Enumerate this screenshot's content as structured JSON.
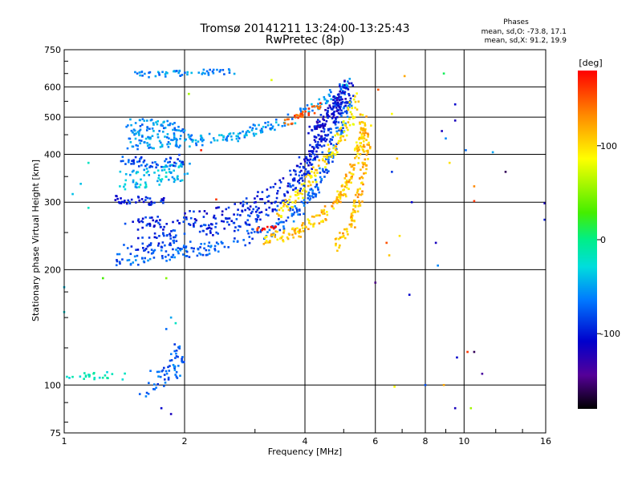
{
  "chart_data": {
    "type": "scatter",
    "title": "Tromsø 20141211 13:24:00-13:25:43",
    "subtitle": "RwPretec (8p)",
    "xlabel": "Frequency [MHz]",
    "ylabel": "Stationary phase Virtual Height [km]",
    "x_scale": "log",
    "y_scale": "log",
    "xlim": [
      1,
      16
    ],
    "ylim": [
      75,
      750
    ],
    "x_ticks": [
      1,
      2,
      4,
      6,
      8,
      10,
      16
    ],
    "y_ticks": [
      75,
      100,
      200,
      300,
      400,
      500,
      600,
      750
    ],
    "x_gridlines": [
      2,
      4,
      6,
      8,
      10
    ],
    "y_gridlines": [
      100,
      200,
      300,
      400,
      500,
      600
    ],
    "grid": true,
    "stats": {
      "heading": "Phases",
      "line1": "mean, sd,O: -73.8, 17.1",
      "line2": "mean, sd,X:  91.2, 19.9"
    },
    "colorbar": {
      "label": "[deg]",
      "range": [
        -180,
        180
      ],
      "ticks": [
        100,
        0,
        -100
      ],
      "tick_labels": [
        "100",
        "0",
        "-100"
      ],
      "colormap": "rainbow (black-purple-blue-cyan-green-yellow-red)"
    },
    "traces": [
      {
        "segments": [
          [
            [
              1.35,
              212
            ],
            [
              1.8,
              218
            ],
            [
              2.4,
              228
            ],
            [
              3.0,
              245
            ],
            [
              3.5,
              262
            ],
            [
              4.0,
              295
            ],
            [
              4.4,
              345
            ],
            [
              4.8,
              430
            ],
            [
              5.2,
              560
            ]
          ]
        ],
        "phase": -75,
        "thickness": 0.035,
        "n": 260
      },
      {
        "segments": [
          [
            [
              1.4,
              230
            ],
            [
              2.0,
              245
            ],
            [
              2.6,
              262
            ],
            [
              3.2,
              285
            ],
            [
              3.7,
              320
            ],
            [
              4.2,
              380
            ],
            [
              4.6,
              460
            ],
            [
              5.0,
              590
            ]
          ]
        ],
        "phase": -90,
        "thickness": 0.04,
        "n": 240
      },
      {
        "segments": [
          [
            [
              1.45,
              258
            ],
            [
              1.9,
              268
            ],
            [
              2.5,
              280
            ],
            [
              3.0,
              300
            ],
            [
              3.6,
              335
            ],
            [
              4.1,
              390
            ],
            [
              4.6,
              480
            ]
          ]
        ],
        "phase": -100,
        "thickness": 0.04,
        "n": 170
      },
      {
        "segments": [
          [
            [
              1.45,
              425
            ],
            [
              2.0,
              432
            ],
            [
              2.6,
              445
            ],
            [
              3.2,
              470
            ],
            [
              3.8,
              500
            ],
            [
              4.3,
              540
            ],
            [
              4.9,
              590
            ],
            [
              5.3,
              610
            ]
          ]
        ],
        "phase": -55,
        "thickness": 0.03,
        "n": 200
      },
      {
        "segments": [
          [
            [
              1.45,
              470
            ],
            [
              1.8,
              465
            ],
            [
              2.0,
              460
            ]
          ]
        ],
        "phase": -60,
        "thickness": 0.05,
        "n": 80
      },
      {
        "segments": [
          [
            [
              1.35,
              305
            ],
            [
              1.55,
              303
            ],
            [
              1.8,
              300
            ]
          ]
        ],
        "phase": -100,
        "thickness": 0.02,
        "n": 40
      },
      {
        "segments": [
          [
            [
              1.4,
              340
            ],
            [
              1.7,
              350
            ],
            [
              2.0,
              365
            ]
          ]
        ],
        "phase": -40,
        "thickness": 0.05,
        "n": 80
      },
      {
        "segments": [
          [
            [
              1.4,
              385
            ],
            [
              1.7,
              380
            ],
            [
              2.0,
              388
            ]
          ]
        ],
        "phase": -80,
        "thickness": 0.03,
        "n": 50
      },
      {
        "segments": [
          [
            [
              1.5,
              645
            ],
            [
              1.9,
              650
            ],
            [
              2.3,
              655
            ],
            [
              2.7,
              660
            ]
          ]
        ],
        "phase": -60,
        "thickness": 0.015,
        "n": 55
      },
      {
        "segments": [
          [
            [
              4.2,
              440
            ],
            [
              4.5,
              500
            ],
            [
              4.9,
              560
            ],
            [
              5.2,
              600
            ]
          ]
        ],
        "phase": -110,
        "thickness": 0.05,
        "n": 120
      },
      {
        "segments": [
          [
            [
              3.2,
              240
            ],
            [
              3.8,
              250
            ],
            [
              4.3,
              270
            ],
            [
              4.8,
              300
            ],
            [
              5.2,
              350
            ],
            [
              5.5,
              420
            ],
            [
              5.6,
              500
            ]
          ]
        ],
        "phase": 110,
        "thickness": 0.03,
        "n": 200
      },
      {
        "segments": [
          [
            [
              3.4,
              280
            ],
            [
              4.0,
              330
            ],
            [
              4.6,
              400
            ],
            [
              5.1,
              470
            ],
            [
              5.4,
              560
            ]
          ]
        ],
        "phase": 100,
        "thickness": 0.035,
        "n": 130
      },
      {
        "segments": [
          [
            [
              4.8,
              230
            ],
            [
              5.2,
              260
            ],
            [
              5.5,
              320
            ],
            [
              5.7,
              400
            ],
            [
              5.75,
              480
            ]
          ]
        ],
        "phase": 115,
        "thickness": 0.03,
        "n": 110
      },
      {
        "segments": [
          [
            [
              3.0,
              255
            ],
            [
              3.2,
              256
            ],
            [
              3.4,
              258
            ]
          ]
        ],
        "phase": 170,
        "thickness": 0.008,
        "n": 15
      },
      {
        "segments": [
          [
            [
              3.5,
              480
            ],
            [
              3.9,
              500
            ],
            [
              4.4,
              540
            ]
          ]
        ],
        "phase": 150,
        "thickness": 0.02,
        "n": 35
      },
      {
        "segments": [
          [
            [
              1.6,
              100
            ],
            [
              1.75,
              103
            ],
            [
              1.9,
              110
            ],
            [
              1.95,
              125
            ]
          ]
        ],
        "phase": -75,
        "thickness": 0.06,
        "n": 60
      },
      {
        "segments": [
          [
            [
              1.0,
              104
            ],
            [
              1.2,
              106
            ],
            [
              1.4,
              105
            ]
          ]
        ],
        "phase": -20,
        "thickness": 0.02,
        "n": 25
      }
    ],
    "points": [
      {
        "x": 6.1,
        "y": 590,
        "phase": 150
      },
      {
        "x": 6.6,
        "y": 510,
        "phase": 90
      },
      {
        "x": 7.1,
        "y": 640,
        "phase": 120
      },
      {
        "x": 8.9,
        "y": 650,
        "phase": 10
      },
      {
        "x": 9.5,
        "y": 540,
        "phase": -110
      },
      {
        "x": 9.5,
        "y": 490,
        "phase": -120
      },
      {
        "x": 8.8,
        "y": 460,
        "phase": -120
      },
      {
        "x": 9.0,
        "y": 440,
        "phase": -60
      },
      {
        "x": 6.8,
        "y": 390,
        "phase": 110
      },
      {
        "x": 6.6,
        "y": 360,
        "phase": -90
      },
      {
        "x": 9.2,
        "y": 380,
        "phase": 100
      },
      {
        "x": 10.1,
        "y": 410,
        "phase": -70
      },
      {
        "x": 11.8,
        "y": 405,
        "phase": -50
      },
      {
        "x": 12.7,
        "y": 360,
        "phase": -160
      },
      {
        "x": 10.6,
        "y": 330,
        "phase": 130
      },
      {
        "x": 10.6,
        "y": 302,
        "phase": 160
      },
      {
        "x": 15.9,
        "y": 298,
        "phase": -120
      },
      {
        "x": 15.9,
        "y": 270,
        "phase": -100
      },
      {
        "x": 6.5,
        "y": 218,
        "phase": 110
      },
      {
        "x": 6.4,
        "y": 235,
        "phase": 150
      },
      {
        "x": 6.9,
        "y": 245,
        "phase": 100
      },
      {
        "x": 7.4,
        "y": 300,
        "phase": -110
      },
      {
        "x": 8.5,
        "y": 235,
        "phase": -120
      },
      {
        "x": 8.6,
        "y": 205,
        "phase": -60
      },
      {
        "x": 6.0,
        "y": 185,
        "phase": -150
      },
      {
        "x": 7.3,
        "y": 172,
        "phase": -110
      },
      {
        "x": 9.6,
        "y": 118,
        "phase": -110
      },
      {
        "x": 10.2,
        "y": 122,
        "phase": 160
      },
      {
        "x": 10.6,
        "y": 122,
        "phase": -160
      },
      {
        "x": 11.1,
        "y": 107,
        "phase": -140
      },
      {
        "x": 6.7,
        "y": 99,
        "phase": 90
      },
      {
        "x": 8.0,
        "y": 100,
        "phase": -80
      },
      {
        "x": 8.9,
        "y": 100,
        "phase": 120
      },
      {
        "x": 9.5,
        "y": 87,
        "phase": -120
      },
      {
        "x": 10.4,
        "y": 87,
        "phase": 60
      },
      {
        "x": 1.75,
        "y": 87,
        "phase": -110
      },
      {
        "x": 1.85,
        "y": 84,
        "phase": -120
      },
      {
        "x": 1.8,
        "y": 190,
        "phase": 50
      },
      {
        "x": 1.0,
        "y": 180,
        "phase": -40
      },
      {
        "x": 1.0,
        "y": 155,
        "phase": -30
      },
      {
        "x": 1.05,
        "y": 315,
        "phase": -40
      },
      {
        "x": 1.15,
        "y": 380,
        "phase": -20
      },
      {
        "x": 1.1,
        "y": 335,
        "phase": -40
      },
      {
        "x": 1.15,
        "y": 290,
        "phase": -20
      },
      {
        "x": 2.05,
        "y": 575,
        "phase": 60
      },
      {
        "x": 3.3,
        "y": 625,
        "phase": 80
      },
      {
        "x": 2.2,
        "y": 410,
        "phase": 170
      },
      {
        "x": 2.4,
        "y": 305,
        "phase": 160
      },
      {
        "x": 1.85,
        "y": 150,
        "phase": -50
      },
      {
        "x": 1.8,
        "y": 140,
        "phase": -70
      },
      {
        "x": 1.9,
        "y": 145,
        "phase": -20
      },
      {
        "x": 1.25,
        "y": 190,
        "phase": 30
      }
    ]
  }
}
